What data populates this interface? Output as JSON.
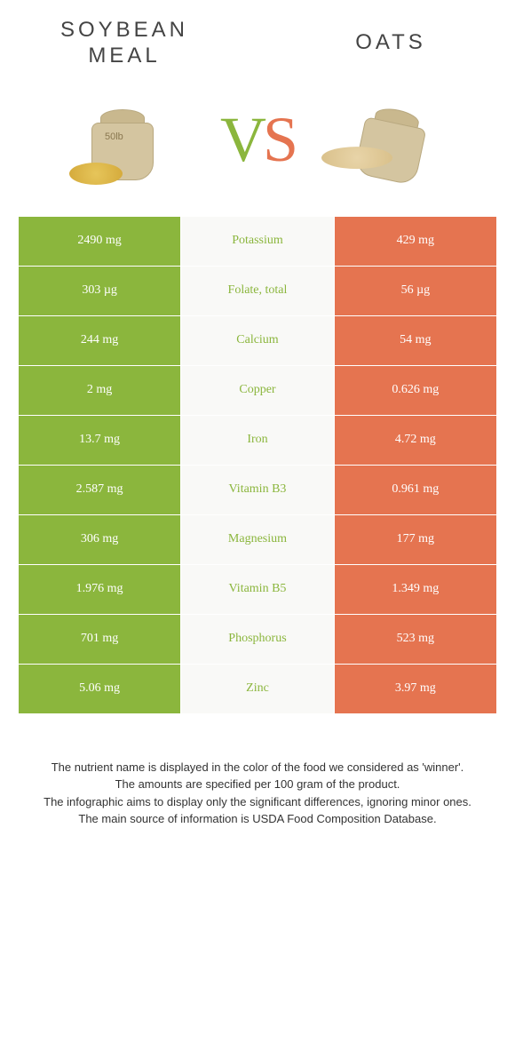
{
  "header": {
    "left_title": "Soybean meal",
    "right_title": "Oats"
  },
  "vs": {
    "v": "V",
    "s": "S"
  },
  "colors": {
    "green": "#8bb63d",
    "orange": "#e57450",
    "mid_bg": "#f9f9f7",
    "text_dark": "#444444"
  },
  "table": {
    "left_color": "green",
    "right_color": "orange",
    "rows": [
      {
        "left": "2490 mg",
        "nutrient": "Potassium",
        "right": "429 mg",
        "winner": "green"
      },
      {
        "left": "303 µg",
        "nutrient": "Folate, total",
        "right": "56 µg",
        "winner": "green"
      },
      {
        "left": "244 mg",
        "nutrient": "Calcium",
        "right": "54 mg",
        "winner": "green"
      },
      {
        "left": "2 mg",
        "nutrient": "Copper",
        "right": "0.626 mg",
        "winner": "green"
      },
      {
        "left": "13.7 mg",
        "nutrient": "Iron",
        "right": "4.72 mg",
        "winner": "green"
      },
      {
        "left": "2.587 mg",
        "nutrient": "Vitamin B3",
        "right": "0.961 mg",
        "winner": "green"
      },
      {
        "left": "306 mg",
        "nutrient": "Magnesium",
        "right": "177 mg",
        "winner": "green"
      },
      {
        "left": "1.976 mg",
        "nutrient": "Vitamin B5",
        "right": "1.349 mg",
        "winner": "green"
      },
      {
        "left": "701 mg",
        "nutrient": "Phosphorus",
        "right": "523 mg",
        "winner": "green"
      },
      {
        "left": "5.06 mg",
        "nutrient": "Zinc",
        "right": "3.97 mg",
        "winner": "green"
      }
    ]
  },
  "footer": {
    "line1": "The nutrient name is displayed in the color of the food we considered as 'winner'.",
    "line2": "The amounts are specified per 100 gram of the product.",
    "line3": "The infographic aims to display only the significant differences, ignoring minor ones.",
    "line4": "The main source of information is USDA Food Composition Database."
  },
  "icons": {
    "left_sack_label": "50lb"
  }
}
